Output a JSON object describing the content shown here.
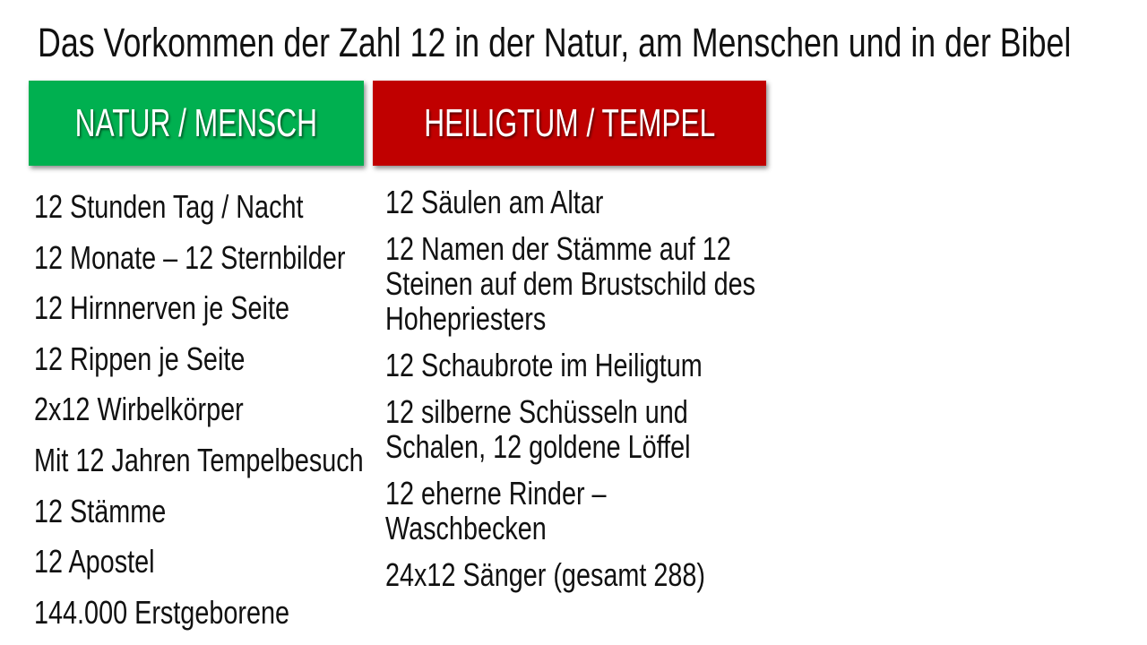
{
  "title": "Das Vorkommen der Zahl 12 in der Natur, am Menschen und in der Bibel",
  "colors": {
    "natur": "#00b050",
    "tempel": "#c00000"
  },
  "natur": {
    "heading": "NATUR / MENSCH",
    "items": [
      "12 Stunden Tag / Nacht",
      "12 Monate – 12 Sternbilder",
      "12 Hirnnerven je Seite",
      "12 Rippen je Seite",
      "2x12 Wirbelkörper",
      "Mit 12 Jahren Tempelbesuch",
      "12 Stämme",
      "12 Apostel",
      "144.000 Erstgeborene"
    ]
  },
  "tempel": {
    "heading": "HEILIGTUM / TEMPEL",
    "items": [
      {
        "lines": [
          "12 Säulen am Altar"
        ]
      },
      {
        "lines": [
          "12 Namen der Stämme auf 12",
          "Steinen auf dem Brustschild des",
          "Hohepriesters"
        ]
      },
      {
        "lines": [
          "12 Schaubrote im Heiligtum"
        ]
      },
      {
        "lines": [
          "12 silberne Schüsseln und",
          "Schalen, 12 goldene Löffel"
        ]
      },
      {
        "lines": [
          "12 eherne Rinder –",
          "Waschbecken"
        ]
      },
      {
        "lines": [
          "24x12 Sänger (gesamt 288)"
        ]
      }
    ]
  }
}
